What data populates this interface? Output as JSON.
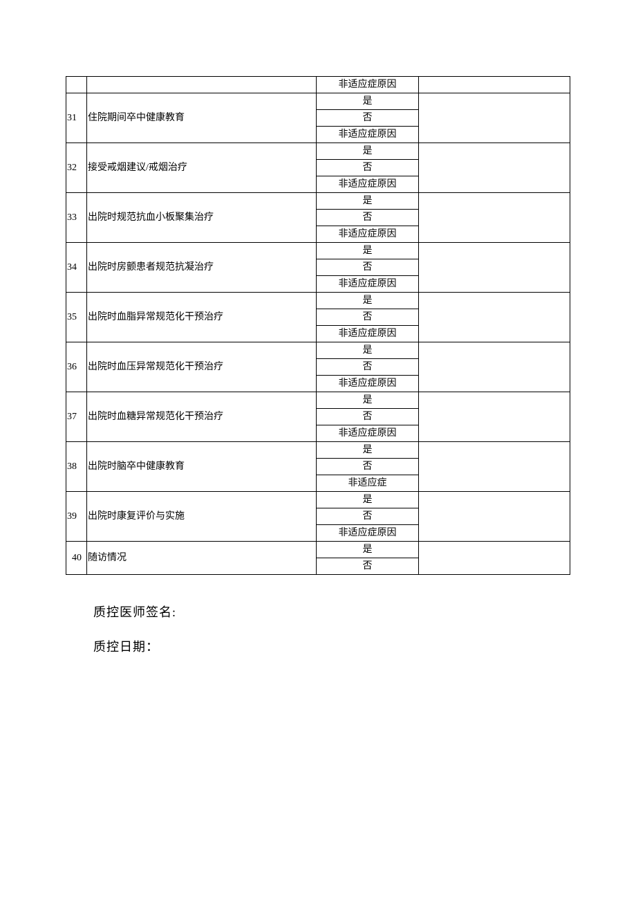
{
  "table": {
    "options": {
      "yes": "是",
      "no": "否",
      "reason": "非适应症原因",
      "reason_short": "非适应症"
    },
    "first_row_option": "非适应症原因",
    "rows": [
      {
        "num": "31",
        "desc": "住院期间卒中健康教育",
        "opts": [
          "是",
          "否",
          "非适应症原因"
        ]
      },
      {
        "num": "32",
        "desc": "接受戒烟建议/戒烟治疗",
        "opts": [
          "是",
          "否",
          "非适应症原因"
        ]
      },
      {
        "num": "33",
        "desc": "出院时规范抗血小板聚集治疗",
        "opts": [
          "是",
          "否",
          "非适应症原因"
        ]
      },
      {
        "num": "34",
        "desc": "出院时房颤患者规范抗凝治疗",
        "opts": [
          "是",
          "否",
          "非适应症原因"
        ]
      },
      {
        "num": "35",
        "desc": "出院时血脂异常规范化干预治疗",
        "opts": [
          "是",
          "否",
          "非适应症原因"
        ]
      },
      {
        "num": "36",
        "desc": "出院时血压异常规范化干预治疗",
        "opts": [
          "是",
          "否",
          "非适应症原因"
        ]
      },
      {
        "num": "37",
        "desc": "出院时血糖异常规范化干预治疗",
        "opts": [
          "是",
          "否",
          "非适应症原因"
        ]
      },
      {
        "num": "38",
        "desc": "出院时脑卒中健康教育",
        "opts": [
          "是",
          "否",
          "非适应症"
        ]
      },
      {
        "num": "39",
        "desc": "出院时康复评价与实施",
        "opts": [
          "是",
          "否",
          "非适应症原因"
        ]
      },
      {
        "num": "40",
        "desc": "随访情况",
        "opts": [
          "是",
          "否"
        ]
      }
    ]
  },
  "footer": {
    "signature": "质控医师签名:",
    "date": "质控日期："
  }
}
